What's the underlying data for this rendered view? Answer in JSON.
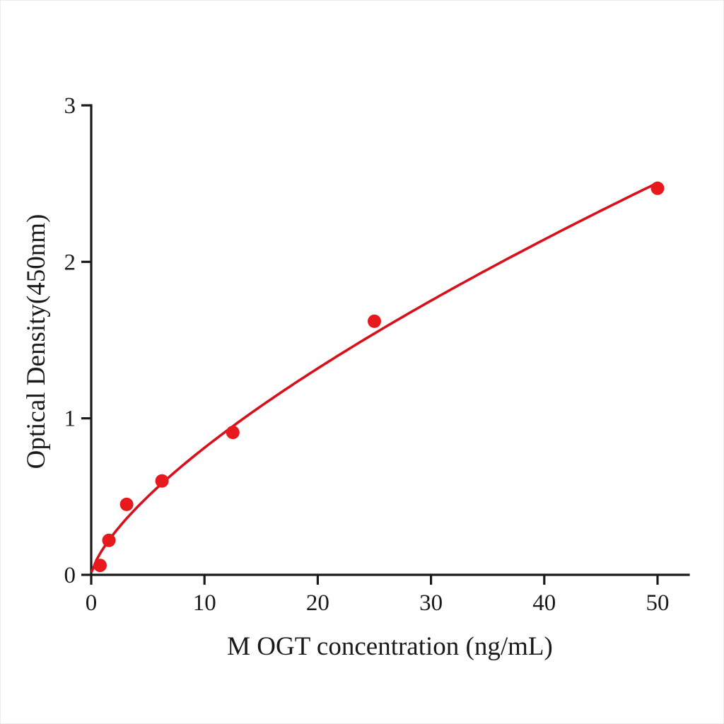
{
  "figure": {
    "kind": "ELISA standard curve plot",
    "background": "#ffffff"
  },
  "chart_data": {
    "type": "scatter",
    "title": "",
    "xlabel": "M OGT concentration (ng/mL)",
    "ylabel": "Optical Density(450nm)",
    "xlim": [
      0,
      52.7
    ],
    "ylim": [
      0,
      3
    ],
    "x_ticks": [
      0,
      10,
      20,
      30,
      40,
      50
    ],
    "y_ticks": [
      0,
      1,
      2,
      3
    ],
    "grid": false,
    "legend": null,
    "points": [
      {
        "x": 0.78,
        "y": 0.06
      },
      {
        "x": 1.56,
        "y": 0.22
      },
      {
        "x": 3.125,
        "y": 0.45
      },
      {
        "x": 6.25,
        "y": 0.6
      },
      {
        "x": 12.5,
        "y": 0.91
      },
      {
        "x": 25,
        "y": 1.62
      },
      {
        "x": 50,
        "y": 2.47
      }
    ],
    "fit_curve": {
      "type": "power",
      "equation": "y = a * x^b",
      "a": 0.162,
      "b": 0.7,
      "x_start": 0.06,
      "x_end": 50
    },
    "colors": {
      "point": "#e8191d",
      "curve": "#d8101b",
      "axis": "#1a1a1a"
    }
  }
}
